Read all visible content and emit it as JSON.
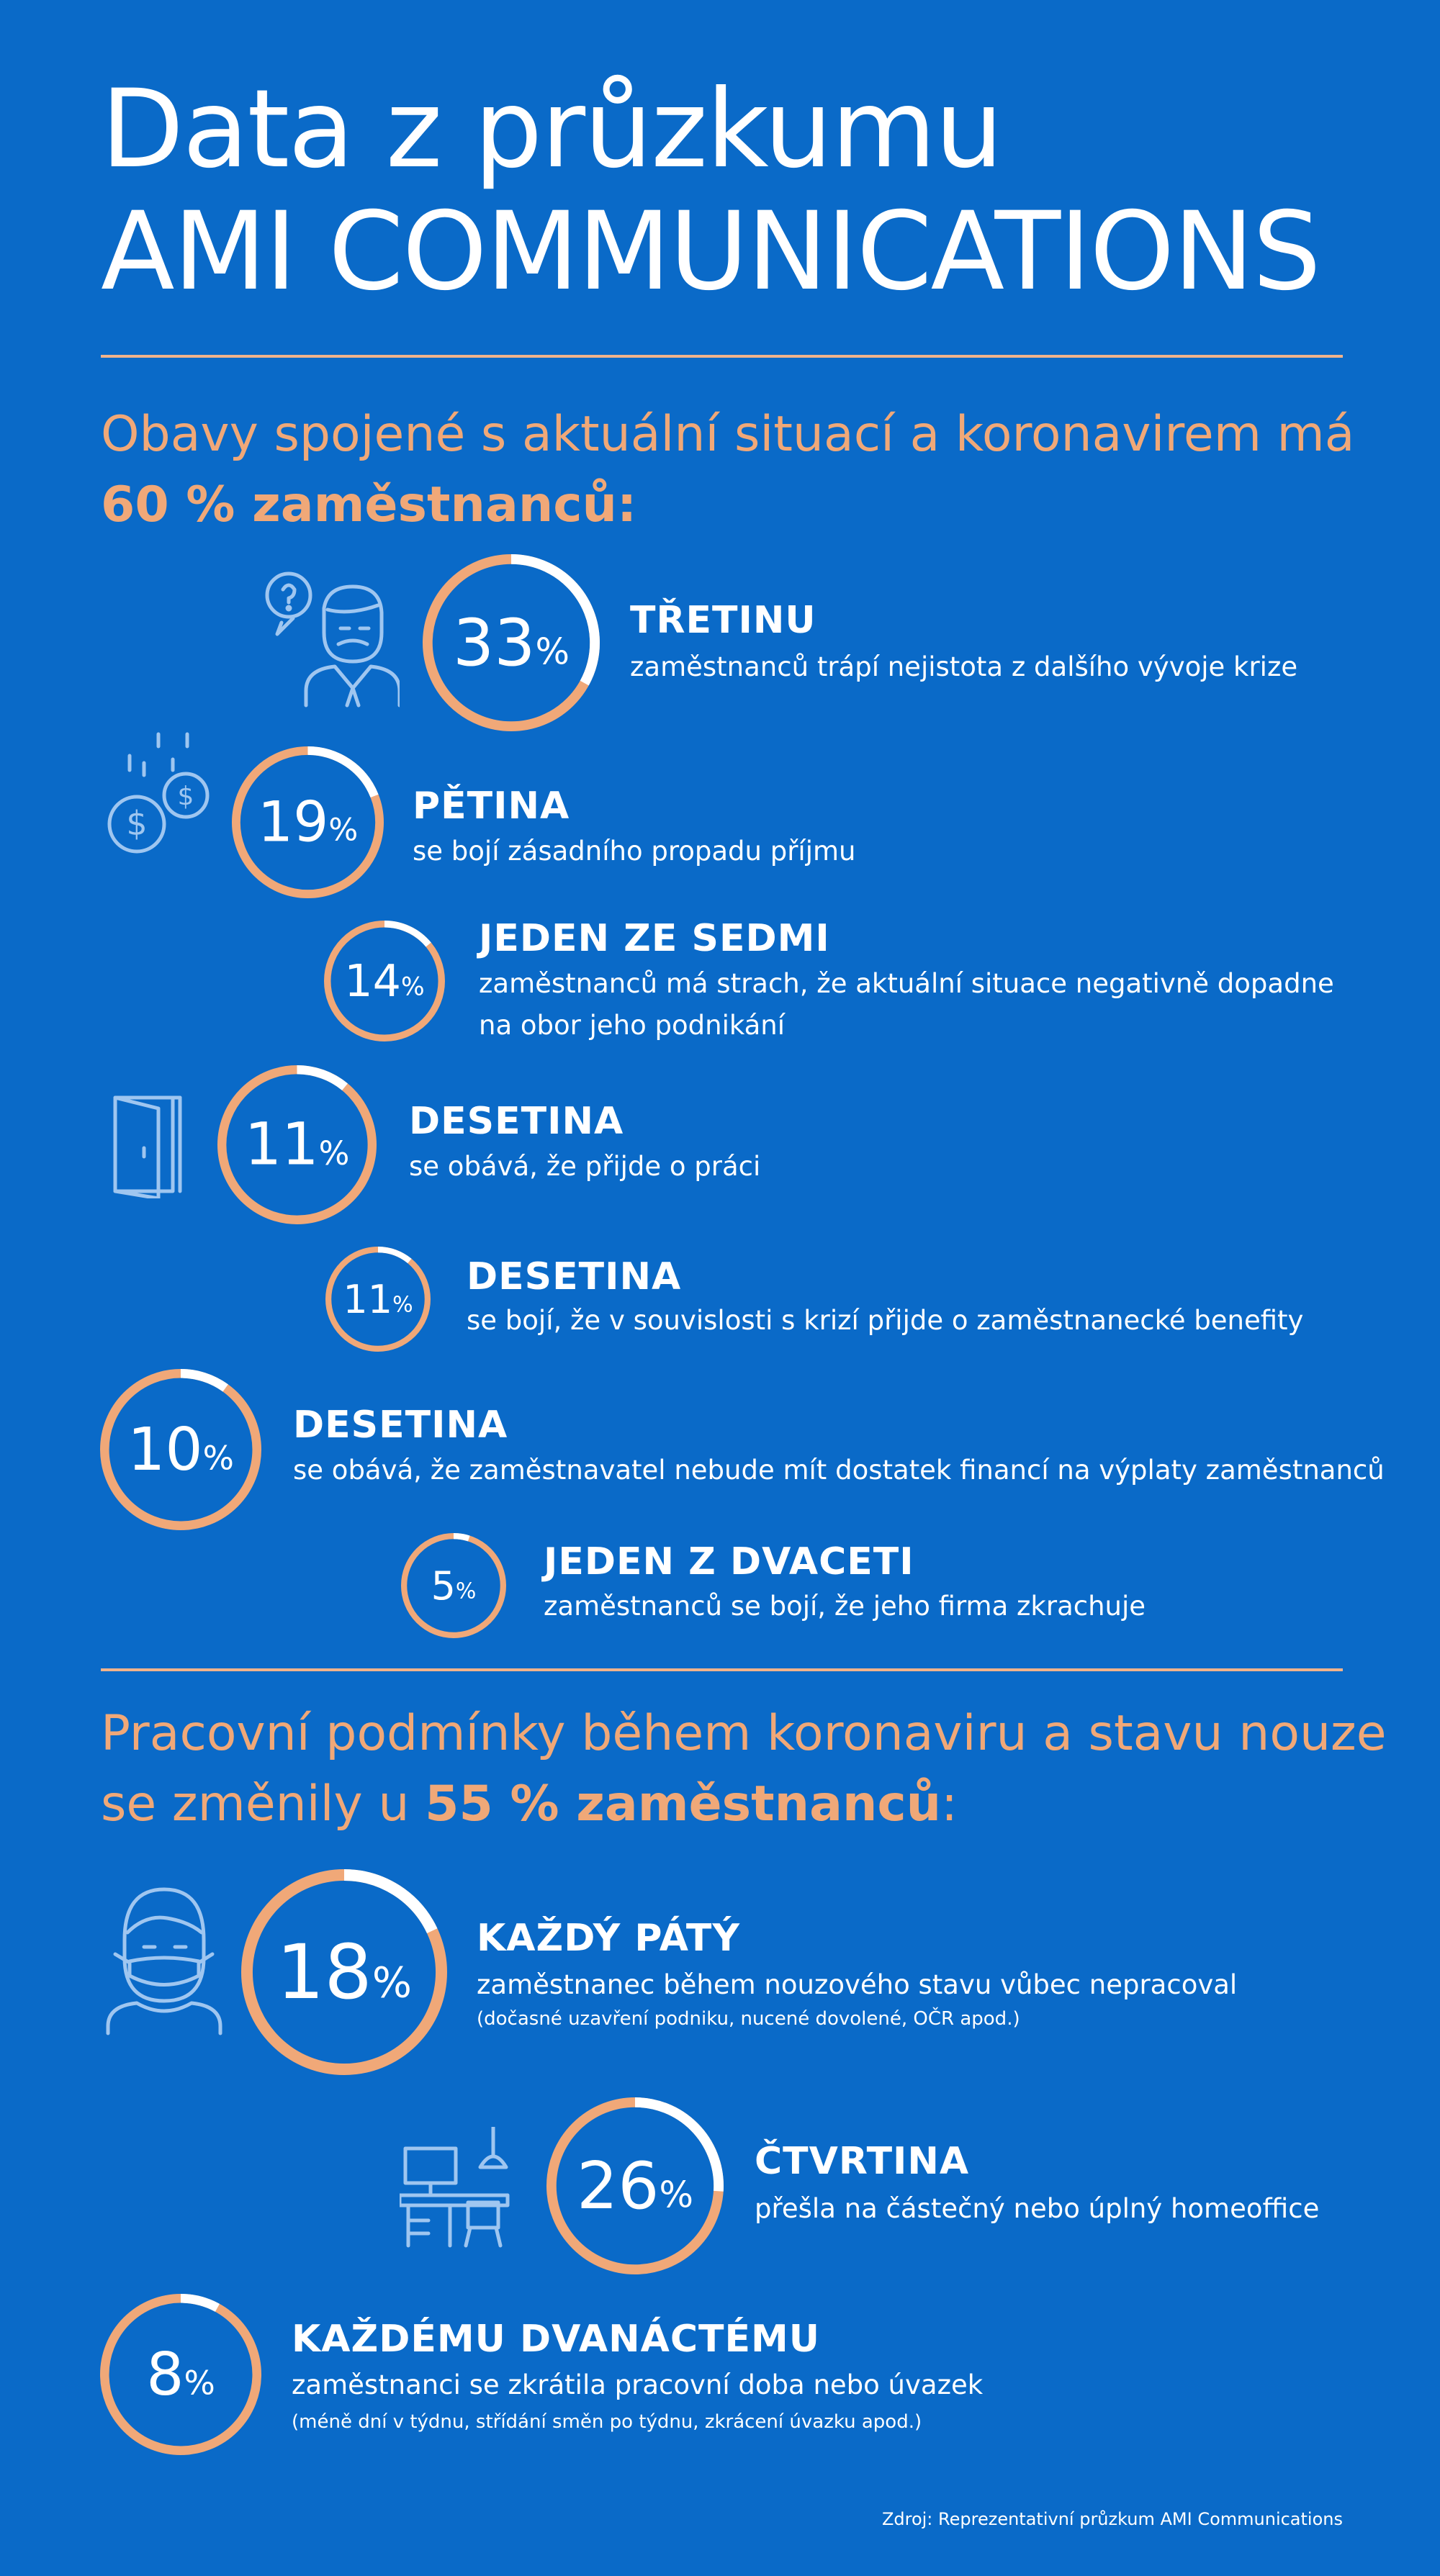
{
  "title": {
    "line1": "Data z průzkumu",
    "line2": "AMI COMMUNICATIONS"
  },
  "section1": {
    "heading_pre": "Obavy spojené s aktuální situací a koronavirem má",
    "heading_bold": "60 % zaměstnanců:"
  },
  "section2": {
    "heading_pre1": "Pracovní podmínky během koronaviru a stavu nouze",
    "heading_pre2": "se změnily u",
    "heading_bold": "55 % zaměstnanců",
    "heading_post": ":"
  },
  "items": [
    {
      "value": 33,
      "label": "33",
      "pct": "%",
      "title": "TŘETINU",
      "text": "zaměstnanců trápí nejistota z dalšího vývoje krize",
      "icon": "worried-person-icon"
    },
    {
      "value": 19,
      "label": "19",
      "pct": "%",
      "title": "PĚTINA",
      "text": "se bojí zásadního propadu příjmu",
      "icon": "falling-coins-icon"
    },
    {
      "value": 14,
      "label": "14",
      "pct": "%",
      "title": "JEDEN ZE SEDMI",
      "text": "zaměstnanců má strach, že aktuální situace negativně dopadne na obor jeho podnikání"
    },
    {
      "value": 11,
      "label": "11",
      "pct": "%",
      "title": "DESETINA",
      "text": "se obává, že přijde o práci",
      "icon": "open-door-icon"
    },
    {
      "value": 11,
      "label": "11",
      "pct": "%",
      "title": "DESETINA",
      "text": "se bojí, že v souvislosti s krizí přijde o zaměstnanecké benefity"
    },
    {
      "value": 10,
      "label": "10",
      "pct": "%",
      "title": "DESETINA",
      "text": "se obává, že zaměstnavatel nebude mít dostatek financí na výplaty zaměstnanců"
    },
    {
      "value": 5,
      "label": "5",
      "pct": "%",
      "title": "JEDEN Z DVACETI",
      "text": "zaměstnanců se bojí, že jeho firma zkrachuje"
    },
    {
      "value": 18,
      "label": "18",
      "pct": "%",
      "title": "KAŽDÝ PÁTÝ",
      "text": "zaměstnanec během nouzového stavu vůbec nepracoval",
      "note": "(dočasné uzavření podniku, nucené dovolené, OČR apod.)",
      "icon": "masked-person-icon"
    },
    {
      "value": 26,
      "label": "26",
      "pct": "%",
      "title": "ČTVRTINA",
      "text": "přešla na částečný nebo úplný homeoffice",
      "icon": "home-desk-icon"
    },
    {
      "value": 8,
      "label": "8",
      "pct": "%",
      "title": "KAŽDÉMU DVANÁCTÉMU",
      "text": "zaměstnanci se zkrátila pracovní doba nebo úvazek",
      "note": "(méně dní v týdnu, střídání směn po týdnu, zkrácení úvazku apod.)"
    }
  ],
  "source": "Zdroj: Reprezentativní průzkum AMI Communications",
  "colors": {
    "background": "#0a6ac8",
    "accent": "#f0a878",
    "white": "#ffffff",
    "icon": "#9fc6f0"
  }
}
